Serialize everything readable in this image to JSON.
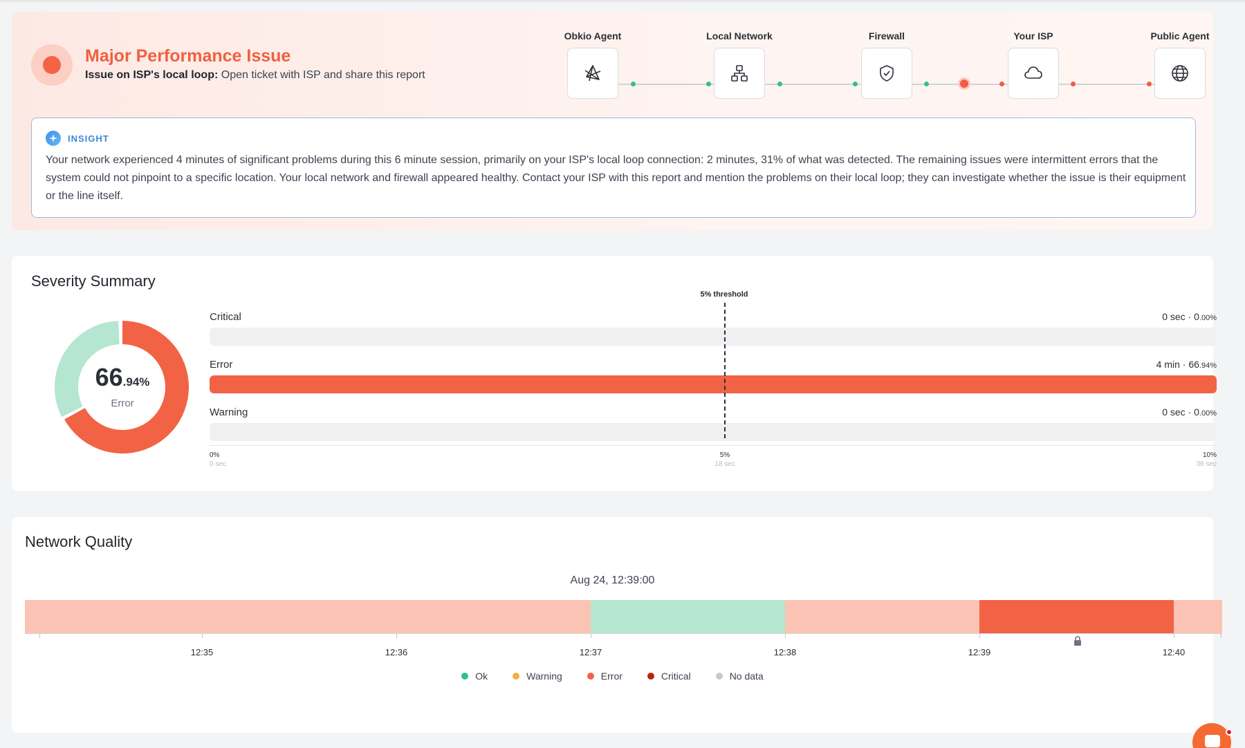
{
  "issue": {
    "title": "Major Performance Issue",
    "subtitle_bold": "Issue on ISP's local loop:",
    "subtitle_text": " Open ticket with ISP and share this report",
    "status_color": "#f36446"
  },
  "path": {
    "hops": [
      {
        "label": "Obkio Agent",
        "icon": "agent-icon"
      },
      {
        "label": "Local Network",
        "icon": "network-icon"
      },
      {
        "label": "Firewall",
        "icon": "shield-icon"
      },
      {
        "label": "Your ISP",
        "icon": "cloud-icon"
      },
      {
        "label": "Public Agent",
        "icon": "globe-icon"
      }
    ],
    "link_status": [
      "ok",
      "ok",
      "error",
      "error"
    ]
  },
  "insight": {
    "label": "INSIGHT",
    "text": "Your network experienced 4 minutes of significant problems during this 6 minute session, primarily on your ISP's local loop connection: 2 minutes, 31% of what was detected. The remaining issues were intermittent errors that the system could not pinpoint to a specific location. Your local network and firewall appeared healthy. Contact your ISP with this report and mention the problems on their local loop; they can investigate whether the issue is their equipment or the line itself."
  },
  "severity": {
    "title": "Severity Summary",
    "donut": {
      "value_int": "66",
      "value_dec": ".94%",
      "caption": "Error",
      "error_fraction": 0.6694
    },
    "threshold_label": "5% threshold",
    "rows": [
      {
        "name": "Critical",
        "duration": "0 sec",
        "sep": " · ",
        "pct_int": "0",
        "pct_dec": ".00%",
        "fill_fraction": 0.0
      },
      {
        "name": "Error",
        "duration": "4 min",
        "sep": " · ",
        "pct_int": "66",
        "pct_dec": ".94%",
        "fill_fraction": 1.0
      },
      {
        "name": "Warning",
        "duration": "0 sec",
        "sep": " · ",
        "pct_int": "0",
        "pct_dec": ".00%",
        "fill_fraction": 0.0
      }
    ],
    "axis": [
      {
        "pct": "0%",
        "time": "0 sec"
      },
      {
        "pct": "5%",
        "time": "18 sec"
      },
      {
        "pct": "10%",
        "time": "36 sec"
      }
    ]
  },
  "network_quality": {
    "title": "Network Quality",
    "date": "Aug 24, 12:39:00",
    "ticks": [
      "12:35",
      "12:36",
      "12:37",
      "12:38",
      "12:39",
      "12:40"
    ],
    "segments": [
      {
        "status": "error-light"
      },
      {
        "status": "error-light"
      },
      {
        "status": "error-light"
      },
      {
        "status": "ok"
      },
      {
        "status": "error-light"
      },
      {
        "status": "error"
      },
      {
        "status": "error-light"
      }
    ],
    "legend": [
      {
        "label": "Ok",
        "color": "#2fc08b"
      },
      {
        "label": "Warning",
        "color": "#f5b13d"
      },
      {
        "label": "Error",
        "color": "#f26345"
      },
      {
        "label": "Critical",
        "color": "#b8240f"
      },
      {
        "label": "No data",
        "color": "#c7c9cc"
      }
    ]
  }
}
